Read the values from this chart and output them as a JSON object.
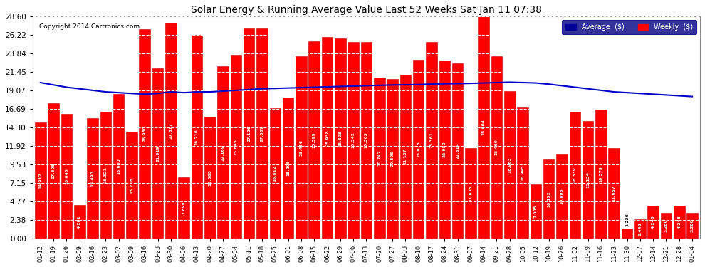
{
  "title": "Solar Energy & Running Average Value Last 52 Weeks Sat Jan 11 07:38",
  "copyright": "Copyright 2014 Cartronics.com",
  "bar_color": "#ff0000",
  "bar_edge_color": "#cc0000",
  "avg_line_color": "#0000cc",
  "background_color": "#ffffff",
  "plot_bg_color": "#ffffff",
  "ylim": [
    0,
    28.6
  ],
  "yticks": [
    0.0,
    2.38,
    4.77,
    7.15,
    9.53,
    11.92,
    14.3,
    16.69,
    19.07,
    21.45,
    23.84,
    26.22,
    28.6
  ],
  "legend_avg_color": "#000099",
  "legend_weekly_color": "#ff0000",
  "categories": [
    "01-12",
    "01-19",
    "01-26",
    "02-09",
    "02-16",
    "02-23",
    "03-02",
    "03-09",
    "03-16",
    "03-23",
    "03-30",
    "04-06",
    "04-13",
    "04-20",
    "04-27",
    "05-04",
    "05-11",
    "05-18",
    "05-25",
    "06-01",
    "06-08",
    "06-15",
    "06-22",
    "06-29",
    "07-06",
    "07-13",
    "07-20",
    "07-27",
    "08-03",
    "08-10",
    "08-17",
    "08-24",
    "08-31",
    "09-07",
    "09-14",
    "09-21",
    "09-28",
    "10-05",
    "10-12",
    "10-19",
    "10-26",
    "11-02",
    "11-09",
    "11-16",
    "11-23",
    "11-30",
    "12-07",
    "12-14",
    "12-21",
    "12-28",
    "01-04"
  ],
  "values": [
    14.912,
    17.395,
    16.045,
    4.281,
    15.49,
    16.321,
    18.6,
    13.718,
    26.98,
    21.919,
    27.817,
    7.899,
    26.216,
    15.668,
    22.169,
    23.645,
    27.126,
    27.067,
    16.812,
    18.205,
    23.466,
    25.399,
    25.938,
    25.803,
    25.342,
    25.303,
    20.747,
    20.595,
    21.107,
    23.026,
    25.361,
    22.98,
    22.614,
    11.605,
    28.604,
    23.46,
    18.963,
    16.945,
    7.005,
    10.152,
    10.895,
    16.339,
    15.134,
    16.579,
    11.657,
    1.236,
    2.443,
    4.248,
    3.28,
    4.248,
    3.28
  ],
  "avg_values": [
    20.1,
    19.8,
    19.5,
    19.3,
    19.1,
    18.9,
    18.8,
    18.7,
    18.6,
    18.7,
    18.9,
    18.8,
    18.9,
    18.9,
    19.0,
    19.1,
    19.2,
    19.3,
    19.35,
    19.4,
    19.45,
    19.5,
    19.55,
    19.6,
    19.65,
    19.7,
    19.75,
    19.8,
    19.82,
    19.85,
    19.9,
    19.95,
    19.97,
    20.0,
    20.05,
    20.1,
    20.15,
    20.1,
    20.05,
    19.9,
    19.7,
    19.5,
    19.3,
    19.1,
    18.9,
    18.8,
    18.7,
    18.6,
    18.5,
    18.4,
    18.3
  ]
}
